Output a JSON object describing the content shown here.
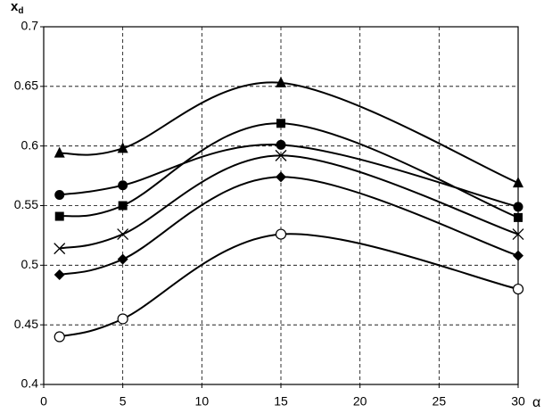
{
  "chart_data": {
    "type": "line",
    "ylabel": "x",
    "ylabel_subscript": "d",
    "xlabel": "α",
    "x": [
      1,
      5,
      15,
      30
    ],
    "series": [
      {
        "marker": "triangle",
        "color": "#000000",
        "values": [
          0.594,
          0.598,
          0.653,
          0.569
        ]
      },
      {
        "marker": "square",
        "color": "#000000",
        "values": [
          0.541,
          0.55,
          0.619,
          0.54
        ]
      },
      {
        "marker": "circle",
        "color": "#000000",
        "values": [
          0.559,
          0.567,
          0.601,
          0.549
        ]
      },
      {
        "marker": "cross",
        "color": "#000000",
        "values": [
          0.514,
          0.526,
          0.592,
          0.526
        ]
      },
      {
        "marker": "diamond",
        "color": "#000000",
        "values": [
          0.492,
          0.505,
          0.574,
          0.508
        ]
      },
      {
        "marker": "open-circle",
        "color": "#000000",
        "values": [
          0.44,
          0.455,
          0.526,
          0.48
        ]
      }
    ],
    "xlim": [
      0,
      30
    ],
    "xticks": [
      0,
      5,
      10,
      15,
      20,
      25,
      30
    ],
    "ylim": [
      0.4,
      0.7
    ],
    "yticks": [
      0.4,
      0.45,
      0.5,
      0.55,
      0.6,
      0.65,
      0.7
    ],
    "grid": true
  }
}
